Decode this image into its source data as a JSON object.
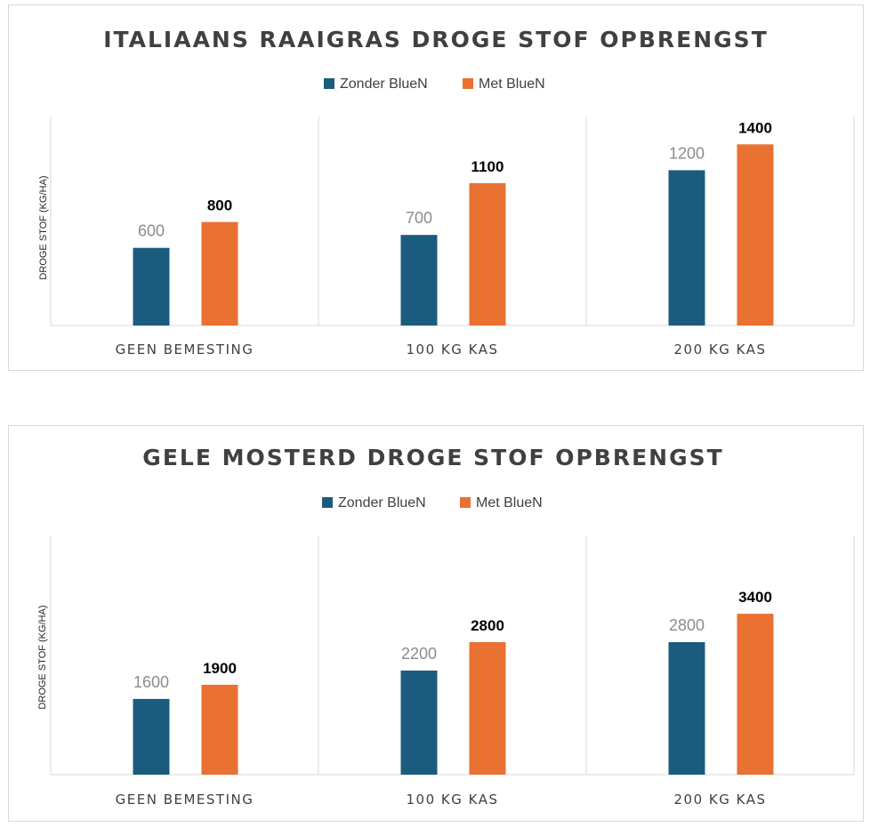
{
  "colors": {
    "series_a": "#1b5c7e",
    "series_b": "#e97132",
    "grid": "#d9d9d9"
  },
  "chart_data": [
    {
      "type": "bar",
      "title": "ITALIAANS RAAIGRAS DROGE STOF OPBRENGST",
      "ylabel": "DROGE STOF (KG/HA)",
      "xlabel": "",
      "categories": [
        "GEEN BEMESTING",
        "100 KG KAS",
        "200 KG KAS"
      ],
      "series": [
        {
          "name": "Zonder BlueN",
          "values": [
            600,
            700,
            1200
          ]
        },
        {
          "name": "Met BlueN",
          "values": [
            800,
            1100,
            1400
          ]
        }
      ],
      "ylim": [
        0,
        1600
      ],
      "legend": "top-center",
      "grid": "vertical separators"
    },
    {
      "type": "bar",
      "title": "GELE MOSTERD DROGE STOF OPBRENGST",
      "ylabel": "DROGE STOF (KG/HA)",
      "xlabel": "",
      "categories": [
        "GEEN BEMESTING",
        "100 KG KAS",
        "200 KG KAS"
      ],
      "series": [
        {
          "name": "Zonder BlueN",
          "values": [
            1600,
            2200,
            2800
          ]
        },
        {
          "name": "Met BlueN",
          "values": [
            1900,
            2800,
            3400
          ]
        }
      ],
      "ylim": [
        0,
        4000
      ],
      "legend": "top-center",
      "grid": "vertical separators"
    }
  ]
}
